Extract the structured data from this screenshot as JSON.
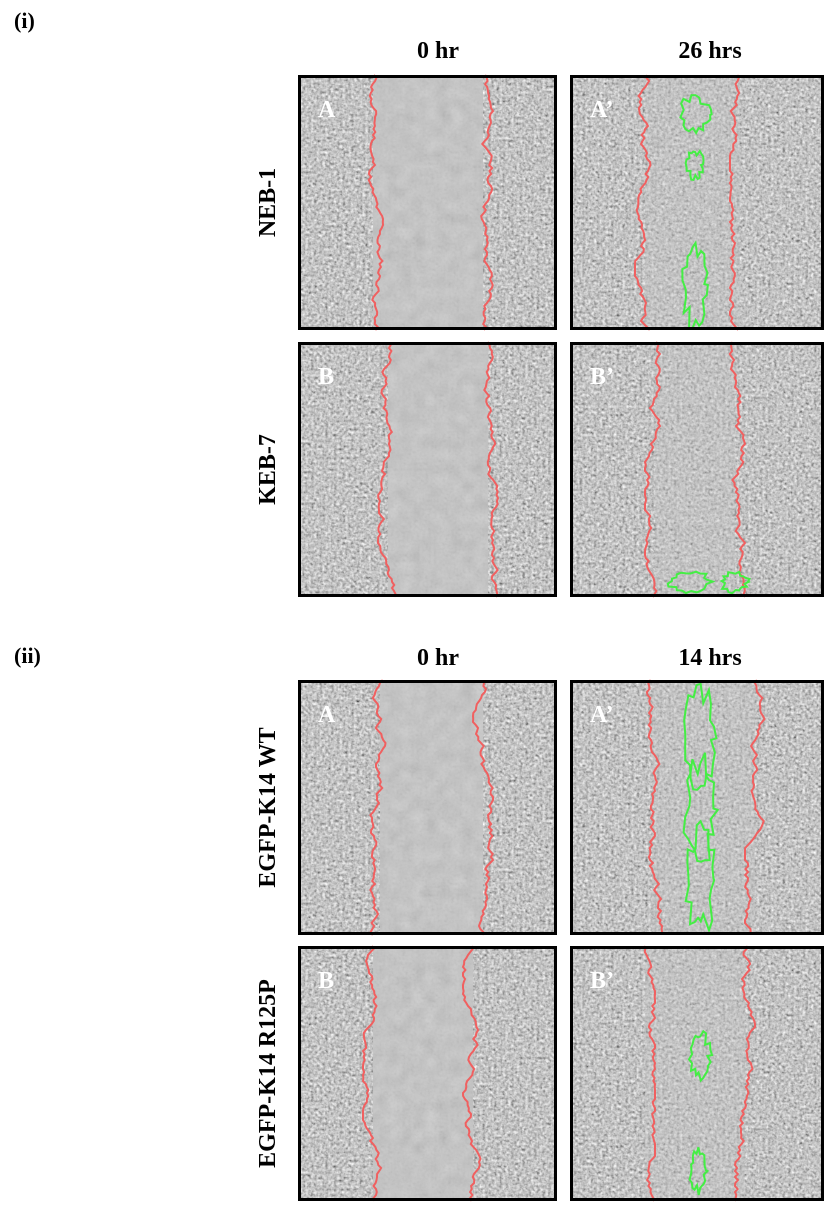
{
  "sections": [
    {
      "label": "(i)",
      "columns": [
        "0 hr",
        "26 hrs"
      ],
      "rows": [
        {
          "label": "NEB-1",
          "panels": [
            "A",
            "A’"
          ]
        },
        {
          "label": "KEB-7",
          "panels": [
            "B",
            "B’"
          ]
        }
      ]
    },
    {
      "label": "(ii)",
      "columns": [
        "0 hr",
        "14 hrs"
      ],
      "rows": [
        {
          "label": "EGFP-K14 WT",
          "panels": [
            "A",
            "A’"
          ]
        },
        {
          "label": "EGFP-K14 R125P",
          "panels": [
            "B",
            "B’"
          ]
        }
      ]
    }
  ]
}
